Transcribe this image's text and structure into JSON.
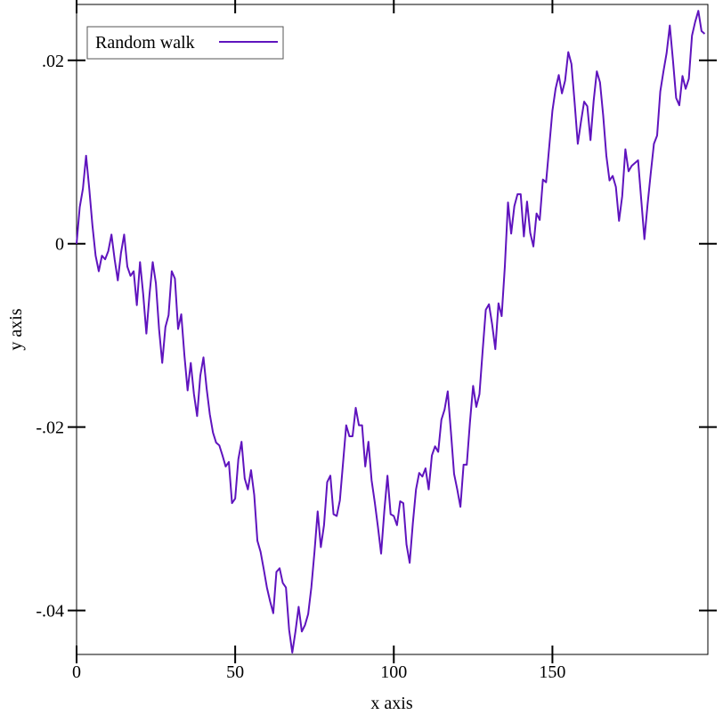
{
  "chart_data": {
    "type": "line",
    "x_label": "x axis",
    "y_label": "y axis",
    "xlim": [
      0,
      199
    ],
    "ylim": [
      -0.0448,
      0.0261
    ],
    "xticks": [
      0,
      50,
      100,
      150
    ],
    "yticks": [
      {
        "value": -0.04,
        "label": "-.04"
      },
      {
        "value": -0.02,
        "label": "-.02"
      },
      0,
      {
        "value": 0.02,
        "label": ".02"
      }
    ],
    "legend": "top-left",
    "x": [
      0,
      1,
      2,
      3,
      4,
      5,
      6,
      7,
      8,
      9,
      10,
      11,
      12,
      13,
      14,
      15,
      16,
      17,
      18,
      19,
      20,
      21,
      22,
      23,
      24,
      25,
      26,
      27,
      28,
      29,
      30,
      31,
      32,
      33,
      34,
      35,
      36,
      37,
      38,
      39,
      40,
      41,
      42,
      43,
      44,
      45,
      46,
      47,
      48,
      49,
      50,
      51,
      52,
      53,
      54,
      55,
      56,
      57,
      58,
      59,
      60,
      61,
      62,
      63,
      64,
      65,
      66,
      67,
      68,
      69,
      70,
      71,
      72,
      73,
      74,
      75,
      76,
      77,
      78,
      79,
      80,
      81,
      82,
      83,
      84,
      85,
      86,
      87,
      88,
      89,
      90,
      91,
      92,
      93,
      94,
      95,
      96,
      97,
      98,
      99,
      100,
      101,
      102,
      103,
      104,
      105,
      106,
      107,
      108,
      109,
      110,
      111,
      112,
      113,
      114,
      115,
      116,
      117,
      118,
      119,
      120,
      121,
      122,
      123,
      124,
      125,
      126,
      127,
      128,
      129,
      130,
      131,
      132,
      133,
      134,
      135,
      136,
      137,
      138,
      139,
      140,
      141,
      142,
      143,
      144,
      145,
      146,
      147,
      148,
      149,
      150,
      151,
      152,
      153,
      154,
      155,
      156,
      157,
      158,
      159,
      160,
      161,
      162,
      163,
      164,
      165,
      166,
      167,
      168,
      169,
      170,
      171,
      172,
      173,
      174,
      175,
      176,
      177,
      178,
      179,
      180,
      181,
      182,
      183,
      184,
      185,
      186,
      187,
      188,
      189,
      190,
      191,
      192,
      193,
      194,
      195,
      196,
      197,
      198
    ],
    "series": [
      {
        "name": "Random walk",
        "color": "#5f14be",
        "values": [
          0,
          0.004,
          0.006,
          0.0096,
          0.006,
          0.002,
          -0.0013,
          -0.003,
          -0.0013,
          -0.0017,
          -0.0008,
          0.001,
          -0.0017,
          -0.004,
          -0.001,
          0.001,
          -0.0025,
          -0.0035,
          -0.003,
          -0.0067,
          -0.002,
          -0.0055,
          -0.0098,
          -0.0055,
          -0.002,
          -0.0043,
          -0.0093,
          -0.013,
          -0.0091,
          -0.0078,
          -0.003,
          -0.0038,
          -0.0093,
          -0.0077,
          -0.0122,
          -0.016,
          -0.013,
          -0.0164,
          -0.0188,
          -0.0144,
          -0.0124,
          -0.0158,
          -0.0186,
          -0.0206,
          -0.0217,
          -0.022,
          -0.0231,
          -0.0243,
          -0.0238,
          -0.0283,
          -0.0278,
          -0.0235,
          -0.0216,
          -0.0256,
          -0.0268,
          -0.0247,
          -0.0274,
          -0.0324,
          -0.0336,
          -0.0355,
          -0.0375,
          -0.039,
          -0.0403,
          -0.0358,
          -0.0354,
          -0.037,
          -0.0375,
          -0.0421,
          -0.0446,
          -0.0423,
          -0.0396,
          -0.0423,
          -0.0416,
          -0.0404,
          -0.0375,
          -0.0336,
          -0.0292,
          -0.0331,
          -0.0307,
          -0.026,
          -0.0253,
          -0.0295,
          -0.0297,
          -0.028,
          -0.0239,
          -0.0198,
          -0.021,
          -0.021,
          -0.0179,
          -0.0198,
          -0.0198,
          -0.0243,
          -0.0216,
          -0.0258,
          -0.0282,
          -0.0309,
          -0.0338,
          -0.0292,
          -0.0253,
          -0.0295,
          -0.0297,
          -0.0307,
          -0.0281,
          -0.0283,
          -0.0328,
          -0.0348,
          -0.0305,
          -0.0268,
          -0.025,
          -0.0254,
          -0.0245,
          -0.0268,
          -0.0231,
          -0.0221,
          -0.0227,
          -0.0192,
          -0.0181,
          -0.0161,
          -0.0205,
          -0.0251,
          -0.0268,
          -0.0287,
          -0.0241,
          -0.0241,
          -0.0195,
          -0.0155,
          -0.0178,
          -0.0164,
          -0.0117,
          -0.0072,
          -0.0066,
          -0.0088,
          -0.0115,
          -0.0065,
          -0.0079,
          -0.0025,
          0.0045,
          0.0011,
          0.0041,
          0.0054,
          0.0054,
          0.0008,
          0.0046,
          0.0012,
          -0.0003,
          0.0033,
          0.0026,
          0.007,
          0.0067,
          0.0106,
          0.0145,
          0.0169,
          0.0184,
          0.0164,
          0.0178,
          0.0209,
          0.0196,
          0.0154,
          0.0109,
          0.0133,
          0.0155,
          0.015,
          0.0113,
          0.0156,
          0.0188,
          0.0176,
          0.014,
          0.0096,
          0.0069,
          0.0074,
          0.0062,
          0.0025,
          0.0052,
          0.0103,
          0.0079,
          0.0085,
          0.0088,
          0.0091,
          0.0048,
          0.0005,
          0.0043,
          0.0077,
          0.0109,
          0.0118,
          0.0166,
          0.0188,
          0.0208,
          0.0238,
          0.02,
          0.0159,
          0.0151,
          0.0183,
          0.0169,
          0.018,
          0.0227,
          0.0242,
          0.0254,
          0.0232,
          0.0229
        ]
      }
    ]
  }
}
